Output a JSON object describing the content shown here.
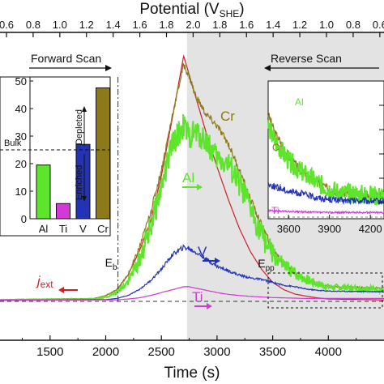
{
  "chart_data": [
    {
      "type": "line",
      "top_axis": {
        "label": "Potential (V",
        "label_sub": "SHE",
        "label_close": ")",
        "ticks": [
          "0.6",
          "0.8",
          "1.0",
          "1.2",
          "1.4",
          "1.6",
          "1.8",
          "2.0",
          "1.8",
          "1.6",
          "1.4",
          "1.2",
          "1.0",
          "0.8",
          "0.6"
        ]
      },
      "xlabel": "Time (s)",
      "xlim": [
        1050,
        4500
      ],
      "xticks": [
        1500,
        2000,
        2500,
        3000,
        3500,
        4000
      ],
      "ylim": [
        0,
        100
      ],
      "shaded_from_time": 2730,
      "scan_labels": {
        "forward": "Forward Scan",
        "reverse": "Reverse Scan"
      },
      "markers": {
        "e_b": {
          "label": "E",
          "sub": "b",
          "time": 2110
        },
        "e_pp": {
          "label": "E",
          "sub": "pp",
          "time": 3410
        }
      },
      "series": [
        {
          "name": "j",
          "name_sub": "ext",
          "color": "#cc1f2a",
          "x": [
            1050,
            1800,
            1900,
            2000,
            2100,
            2200,
            2300,
            2400,
            2500,
            2600,
            2700,
            2800,
            2900,
            3000,
            3100,
            3200,
            3300,
            3400,
            3500,
            3600,
            3700,
            3800,
            3900,
            4000,
            4500
          ],
          "y": [
            0.3,
            0.5,
            1,
            2,
            4,
            9,
            17,
            27,
            43,
            63,
            84,
            71,
            58,
            46,
            35,
            25,
            17,
            11,
            6.5,
            4,
            2.5,
            1.8,
            1.2,
            0.8,
            0.5
          ]
        },
        {
          "name": "Cr",
          "color": "#8c7a1a",
          "x": [
            1050,
            1900,
            2000,
            2100,
            2200,
            2300,
            2400,
            2500,
            2600,
            2700,
            2750,
            2800,
            2900,
            3000,
            3100,
            3200,
            3300,
            3400,
            3500,
            3600,
            3700,
            3800,
            3900,
            4000,
            4500
          ],
          "y": [
            0.6,
            1,
            2,
            4,
            9,
            18,
            30,
            45,
            64,
            81,
            77,
            71,
            64,
            60,
            54,
            45,
            35,
            26,
            18,
            13,
            9.5,
            7.5,
            6,
            5,
            4.5
          ]
        },
        {
          "name": "Al",
          "color": "#5ce52a",
          "x": [
            1050,
            1900,
            2000,
            2100,
            2200,
            2300,
            2400,
            2500,
            2600,
            2700,
            2750,
            2800,
            2900,
            3000,
            3100,
            3200,
            3300,
            3400,
            3500,
            3600,
            3700,
            3800,
            3900,
            4000,
            4500
          ],
          "y": [
            0.5,
            0.8,
            1.5,
            3,
            7,
            14,
            25,
            39,
            54,
            60,
            56,
            58,
            55,
            49,
            47,
            40,
            32,
            23,
            16,
            12,
            9.5,
            7.5,
            6,
            5,
            4
          ]
        },
        {
          "name": "V",
          "color": "#2233b5",
          "x": [
            1050,
            2000,
            2100,
            2200,
            2300,
            2400,
            2500,
            2600,
            2700,
            2750,
            2800,
            2900,
            3000,
            3100,
            3200,
            3300,
            3400,
            3500,
            3600,
            3700,
            3800,
            3900,
            4000,
            4500
          ],
          "y": [
            0.4,
            0.6,
            1,
            2,
            4,
            7,
            11,
            16,
            18.5,
            18,
            17,
            14.5,
            12,
            10.5,
            9,
            8,
            7.5,
            6.5,
            5.5,
            5,
            4.2,
            3.8,
            3.5,
            3.3
          ]
        },
        {
          "name": "Ti",
          "color": "#d23ad6",
          "x": [
            1050,
            2100,
            2200,
            2300,
            2400,
            2500,
            2600,
            2700,
            2750,
            2800,
            2900,
            3000,
            3100,
            3200,
            3300,
            3400,
            3500,
            3600,
            3700,
            3800,
            3900,
            4000,
            4500
          ],
          "y": [
            0.4,
            0.5,
            0.8,
            1.2,
            2,
            3,
            4,
            5,
            5,
            4.6,
            3.8,
            3,
            2.4,
            2,
            1.7,
            1.5,
            1.3,
            1.2,
            1.1,
            1,
            1,
            1,
            1
          ]
        }
      ]
    },
    {
      "type": "bar",
      "categories": [
        "Al",
        "Ti",
        "V",
        "Cr"
      ],
      "values": [
        19.5,
        5.5,
        27,
        47.5
      ],
      "colors": [
        "#5ce52a",
        "#d23ad6",
        "#2233b5",
        "#8c7a1a"
      ],
      "ylim": [
        0,
        50
      ],
      "yticks": [
        0,
        10,
        20,
        30,
        40,
        50
      ],
      "reference_line": {
        "label": "Bulk",
        "value": 25
      },
      "annotations": {
        "upper": "Depleted",
        "lower": "Enriched"
      }
    },
    {
      "type": "line",
      "name": "inset",
      "xlim": [
        3450,
        4300
      ],
      "xticks": [
        3600,
        3900,
        4200
      ],
      "series_labels": [
        "Al",
        "Cr",
        "V",
        "Ti"
      ]
    }
  ]
}
